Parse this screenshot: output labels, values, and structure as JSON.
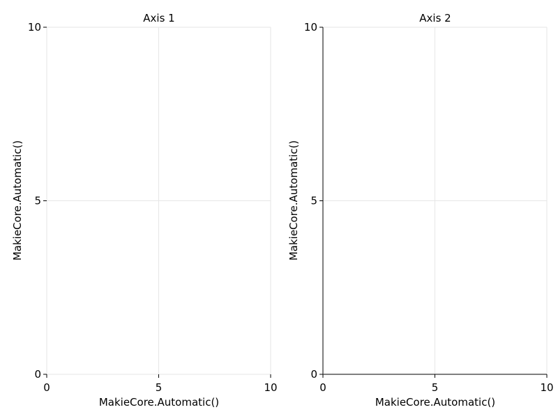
{
  "chart_data": [
    {
      "type": "line",
      "title": "Axis 1",
      "xlabel": "MakieCore.Automatic()",
      "ylabel": "MakieCore.Automatic()",
      "xlim": [
        0,
        10
      ],
      "ylim": [
        0,
        10
      ],
      "xticks": [
        0,
        5,
        10
      ],
      "yticks": [
        0,
        5,
        10
      ],
      "xtick_labels": [
        "0",
        "5",
        "10"
      ],
      "ytick_labels": [
        "0",
        "5",
        "10"
      ],
      "grid": true,
      "series": []
    },
    {
      "type": "line",
      "title": "Axis 2",
      "xlabel": "MakieCore.Automatic()",
      "ylabel": "MakieCore.Automatic()",
      "xlim": [
        0,
        10
      ],
      "ylim": [
        0,
        10
      ],
      "xticks": [
        0,
        5,
        10
      ],
      "yticks": [
        0,
        5,
        10
      ],
      "xtick_labels": [
        "0",
        "5",
        "10"
      ],
      "ytick_labels": [
        "0",
        "5",
        "10"
      ],
      "grid": true,
      "series": []
    }
  ],
  "colors": {
    "background": "#ffffff",
    "grid": "#e6e6e6",
    "spine_light": "#e6e6e6",
    "spine_dark": "#555555",
    "text": "#000000"
  }
}
